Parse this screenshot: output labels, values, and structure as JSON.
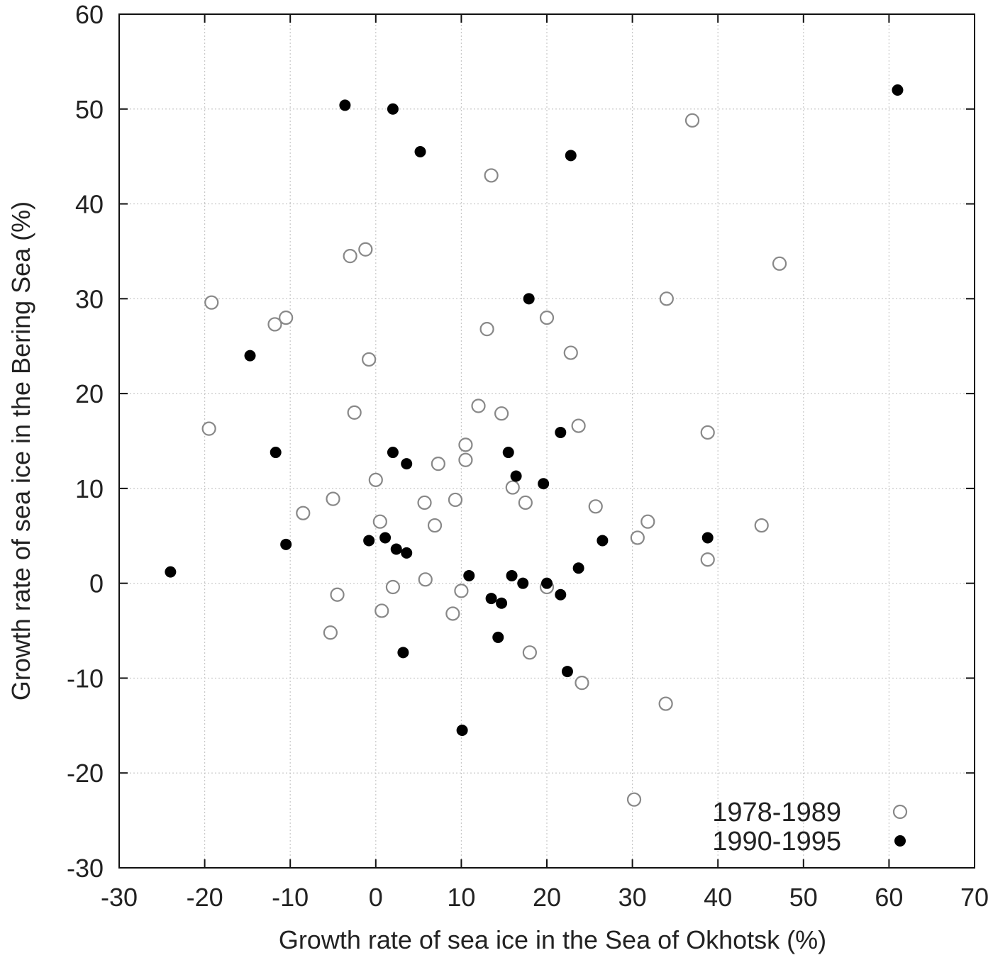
{
  "chart_data": {
    "type": "scatter",
    "xlabel": "Growth rate of sea ice in the Sea of Okhotsk (%)",
    "ylabel": "Growth rate of sea ice in the Bering Sea (%)",
    "xlim": [
      -30,
      70
    ],
    "ylim": [
      -30,
      60
    ],
    "xticks": [
      "-30",
      "-20",
      "-10",
      "0",
      "10",
      "20",
      "30",
      "40",
      "50",
      "60",
      "70"
    ],
    "yticks": [
      "60",
      "50",
      "40",
      "30",
      "20",
      "10",
      "0",
      "-10",
      "-20",
      "-30"
    ],
    "grid": true,
    "legend_position": "bottom-right",
    "series": [
      {
        "name": "1978-1989",
        "marker": "open-circle",
        "color": "#888888",
        "points": [
          [
            37,
            48.8
          ],
          [
            13.5,
            43
          ],
          [
            -3,
            34.5
          ],
          [
            -1.2,
            35.2
          ],
          [
            47.2,
            33.7
          ],
          [
            34,
            30
          ],
          [
            -19.2,
            29.6
          ],
          [
            -11.8,
            27.3
          ],
          [
            -10.5,
            28
          ],
          [
            20,
            28
          ],
          [
            13,
            26.8
          ],
          [
            22.8,
            24.3
          ],
          [
            -0.8,
            23.6
          ],
          [
            12,
            18.7
          ],
          [
            -2.5,
            18
          ],
          [
            14.7,
            17.9
          ],
          [
            23.7,
            16.6
          ],
          [
            -19.5,
            16.3
          ],
          [
            38.8,
            15.9
          ],
          [
            10.5,
            14.6
          ],
          [
            10.5,
            13
          ],
          [
            7.3,
            12.6
          ],
          [
            0,
            10.9
          ],
          [
            16,
            10.1
          ],
          [
            -5,
            8.9
          ],
          [
            9.3,
            8.8
          ],
          [
            5.7,
            8.5
          ],
          [
            17.5,
            8.5
          ],
          [
            25.7,
            8.1
          ],
          [
            -8.5,
            7.4
          ],
          [
            0.5,
            6.5
          ],
          [
            6.9,
            6.1
          ],
          [
            31.8,
            6.5
          ],
          [
            45.1,
            6.1
          ],
          [
            30.6,
            4.8
          ],
          [
            38.8,
            2.5
          ],
          [
            5.8,
            0.4
          ],
          [
            2,
            -0.4
          ],
          [
            20,
            -0.4
          ],
          [
            10,
            -0.8
          ],
          [
            -4.5,
            -1.2
          ],
          [
            0.7,
            -2.9
          ],
          [
            9,
            -3.2
          ],
          [
            -5.3,
            -5.2
          ],
          [
            18,
            -7.3
          ],
          [
            24.1,
            -10.5
          ],
          [
            33.9,
            -12.7
          ],
          [
            30.2,
            -22.8
          ]
        ]
      },
      {
        "name": "1990-1995",
        "marker": "filled-circle",
        "color": "#000000",
        "points": [
          [
            61,
            52
          ],
          [
            -3.6,
            50.4
          ],
          [
            2,
            50
          ],
          [
            5.2,
            45.5
          ],
          [
            22.8,
            45.1
          ],
          [
            17.9,
            30
          ],
          [
            -14.7,
            24
          ],
          [
            21.6,
            15.9
          ],
          [
            -11.7,
            13.8
          ],
          [
            2,
            13.8
          ],
          [
            15.5,
            13.8
          ],
          [
            3.6,
            12.6
          ],
          [
            16.4,
            11.3
          ],
          [
            19.6,
            10.5
          ],
          [
            38.8,
            4.8
          ],
          [
            26.5,
            4.5
          ],
          [
            -0.8,
            4.5
          ],
          [
            1.1,
            4.8
          ],
          [
            -10.5,
            4.1
          ],
          [
            2.4,
            3.6
          ],
          [
            3.6,
            3.2
          ],
          [
            -24,
            1.2
          ],
          [
            23.7,
            1.6
          ],
          [
            10.9,
            0.8
          ],
          [
            15.9,
            0.8
          ],
          [
            17.2,
            0
          ],
          [
            20,
            0
          ],
          [
            21.6,
            -1.2
          ],
          [
            13.5,
            -1.6
          ],
          [
            14.7,
            -2.1
          ],
          [
            14.3,
            -5.7
          ],
          [
            3.2,
            -7.3
          ],
          [
            22.4,
            -9.3
          ],
          [
            10.1,
            -15.5
          ]
        ]
      }
    ]
  }
}
